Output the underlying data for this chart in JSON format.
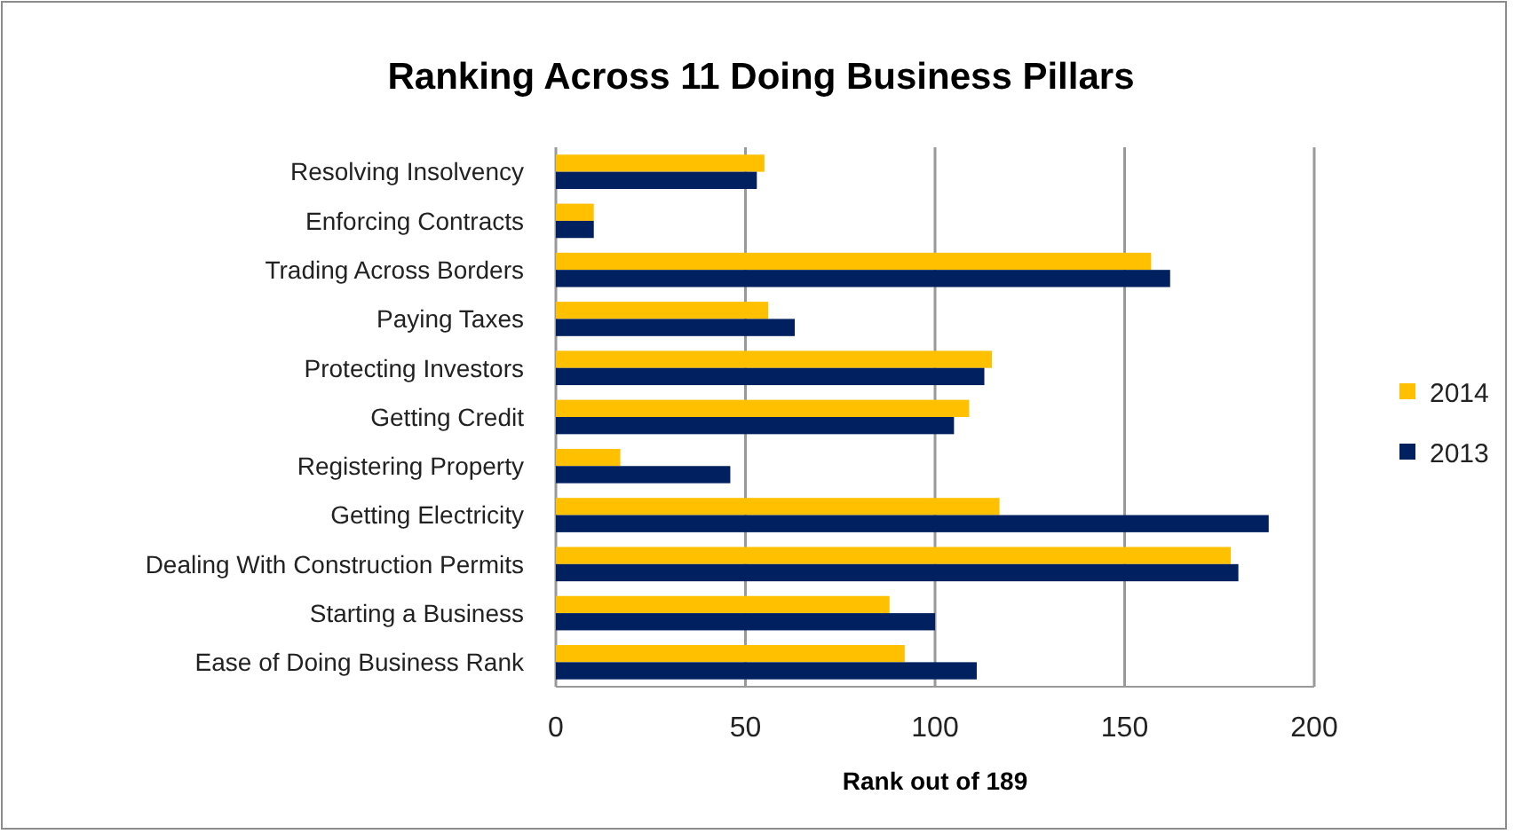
{
  "chart_data": {
    "type": "bar",
    "orientation": "horizontal",
    "title": "Ranking Across 11 Doing Business Pillars",
    "xlabel": "Rank out of 189",
    "categories": [
      "Resolving Insolvency",
      "Enforcing Contracts",
      "Trading Across Borders",
      "Paying Taxes",
      "Protecting Investors",
      "Getting Credit",
      "Registering Property",
      "Getting Electricity",
      "Dealing With Construction Permits",
      "Starting a Business",
      "Ease of Doing Business Rank"
    ],
    "series": [
      {
        "name": "2014",
        "color": "#ffc000",
        "values": [
          55,
          10,
          157,
          56,
          115,
          109,
          17,
          117,
          178,
          88,
          92
        ]
      },
      {
        "name": "2013",
        "color": "#002060",
        "values": [
          53,
          10,
          162,
          63,
          113,
          105,
          46,
          188,
          180,
          100,
          111
        ]
      }
    ],
    "xlim": [
      0,
      200
    ],
    "xticks": [
      0,
      50,
      100,
      150,
      200
    ],
    "grid": "x",
    "legend": "right"
  }
}
